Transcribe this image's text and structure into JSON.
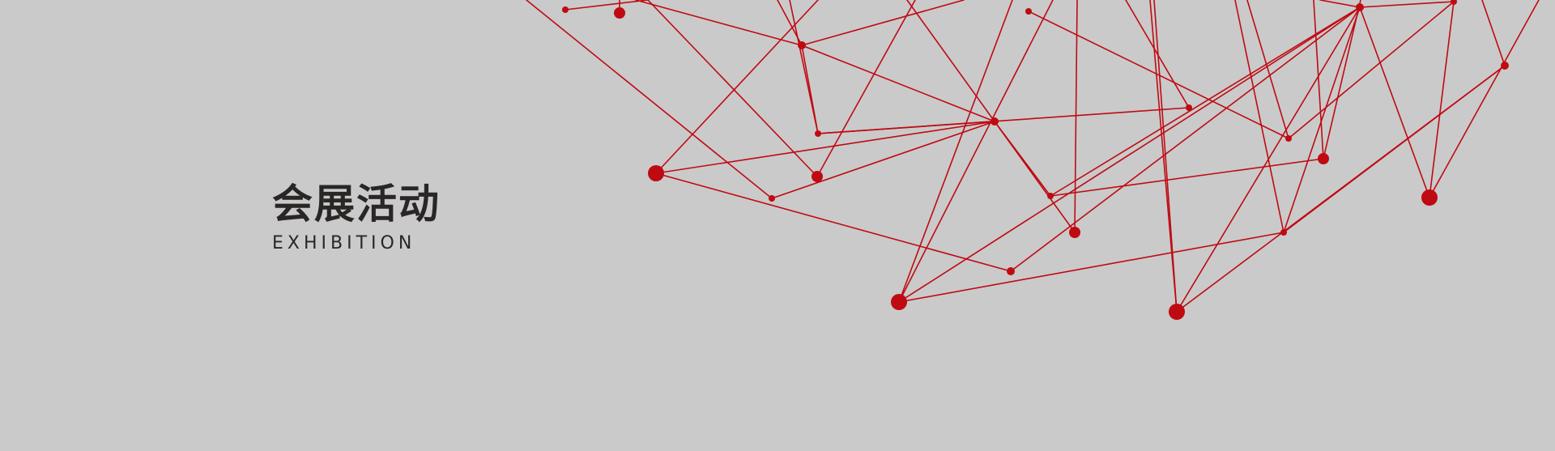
{
  "colors": {
    "background": "#cacaca",
    "network": "#bf0a12",
    "title_text": "#2a2626"
  },
  "title": {
    "chinese": "会展活动",
    "english": "EXHIBITION"
  }
}
